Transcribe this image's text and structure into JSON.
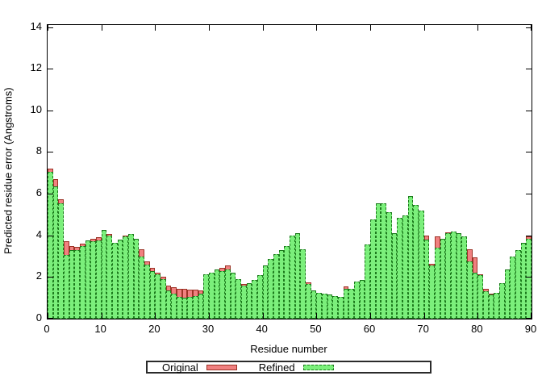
{
  "chart_data": {
    "type": "bar",
    "title": "",
    "xlabel": "Residue number",
    "ylabel": "Predicted residue error (Angstroms)",
    "xlim": [
      0,
      90
    ],
    "ylim": [
      0,
      14.1
    ],
    "x_ticks": [
      0,
      10,
      20,
      30,
      40,
      50,
      60,
      70,
      80,
      90
    ],
    "y_ticks": [
      0,
      2,
      4,
      6,
      8,
      10,
      12,
      14
    ],
    "grid": false,
    "legend_position": "bottom-center",
    "bar_width": 1,
    "x": [
      1,
      2,
      3,
      4,
      5,
      6,
      7,
      8,
      9,
      10,
      11,
      12,
      13,
      14,
      15,
      16,
      17,
      18,
      19,
      20,
      21,
      22,
      23,
      24,
      25,
      26,
      27,
      28,
      29,
      30,
      31,
      32,
      33,
      34,
      35,
      36,
      37,
      38,
      39,
      40,
      41,
      42,
      43,
      44,
      45,
      46,
      47,
      48,
      49,
      50,
      51,
      52,
      53,
      54,
      55,
      56,
      57,
      58,
      59,
      60,
      61,
      62,
      63,
      64,
      65,
      66,
      67,
      68,
      69,
      70,
      71,
      72,
      73,
      74,
      75,
      76,
      77,
      78,
      79,
      80,
      81,
      82,
      83,
      84,
      85,
      86,
      87,
      88,
      89,
      90
    ],
    "series": [
      {
        "name": "Original",
        "fill": "#f08080",
        "border": "#9c3226",
        "border_style": "solid",
        "values": [
          7.2,
          6.7,
          5.75,
          3.7,
          3.5,
          3.45,
          3.6,
          3.75,
          3.85,
          3.9,
          4.25,
          4.05,
          3.65,
          3.8,
          4.0,
          4.05,
          3.85,
          3.35,
          2.75,
          2.45,
          2.2,
          2.0,
          1.6,
          1.5,
          1.45,
          1.45,
          1.4,
          1.4,
          1.35,
          2.15,
          2.2,
          2.35,
          2.45,
          2.55,
          2.2,
          1.9,
          1.65,
          1.7,
          1.85,
          2.1,
          2.55,
          2.85,
          3.1,
          3.3,
          3.5,
          4.0,
          4.1,
          3.35,
          1.75,
          1.35,
          1.25,
          1.2,
          1.15,
          1.1,
          1.05,
          1.55,
          1.45,
          1.8,
          1.85,
          3.55,
          4.75,
          5.55,
          5.55,
          5.1,
          4.1,
          4.85,
          4.95,
          5.9,
          5.45,
          5.2,
          4.0,
          2.65,
          3.95,
          3.85,
          4.15,
          4.2,
          4.1,
          3.95,
          3.35,
          2.95,
          2.15,
          1.45,
          1.2,
          1.25,
          1.7,
          2.35,
          3.0,
          3.3,
          3.65,
          3.95
        ]
      },
      {
        "name": "Refined",
        "fill": "#7bef7b",
        "border": "#1c7a1c",
        "border_style": "dashed",
        "values": [
          7.05,
          6.35,
          5.55,
          3.05,
          3.3,
          3.3,
          3.5,
          3.75,
          3.7,
          3.75,
          4.25,
          4.0,
          3.65,
          3.8,
          3.95,
          4.05,
          3.85,
          3.0,
          2.6,
          2.3,
          2.15,
          1.9,
          1.35,
          1.2,
          1.05,
          1.0,
          1.05,
          1.1,
          1.2,
          2.15,
          2.2,
          2.35,
          2.3,
          2.35,
          2.2,
          1.9,
          1.6,
          1.7,
          1.85,
          2.1,
          2.55,
          2.85,
          3.1,
          3.3,
          3.5,
          4.0,
          4.1,
          3.35,
          1.65,
          1.35,
          1.25,
          1.2,
          1.15,
          1.1,
          1.05,
          1.45,
          1.45,
          1.8,
          1.85,
          3.55,
          4.75,
          5.55,
          5.55,
          5.1,
          4.1,
          4.85,
          4.95,
          5.9,
          5.45,
          5.2,
          3.8,
          2.55,
          3.4,
          3.85,
          4.1,
          4.2,
          4.1,
          3.95,
          2.75,
          2.2,
          2.1,
          1.3,
          1.15,
          1.25,
          1.7,
          2.35,
          3.0,
          3.3,
          3.65,
          3.85
        ]
      }
    ]
  }
}
